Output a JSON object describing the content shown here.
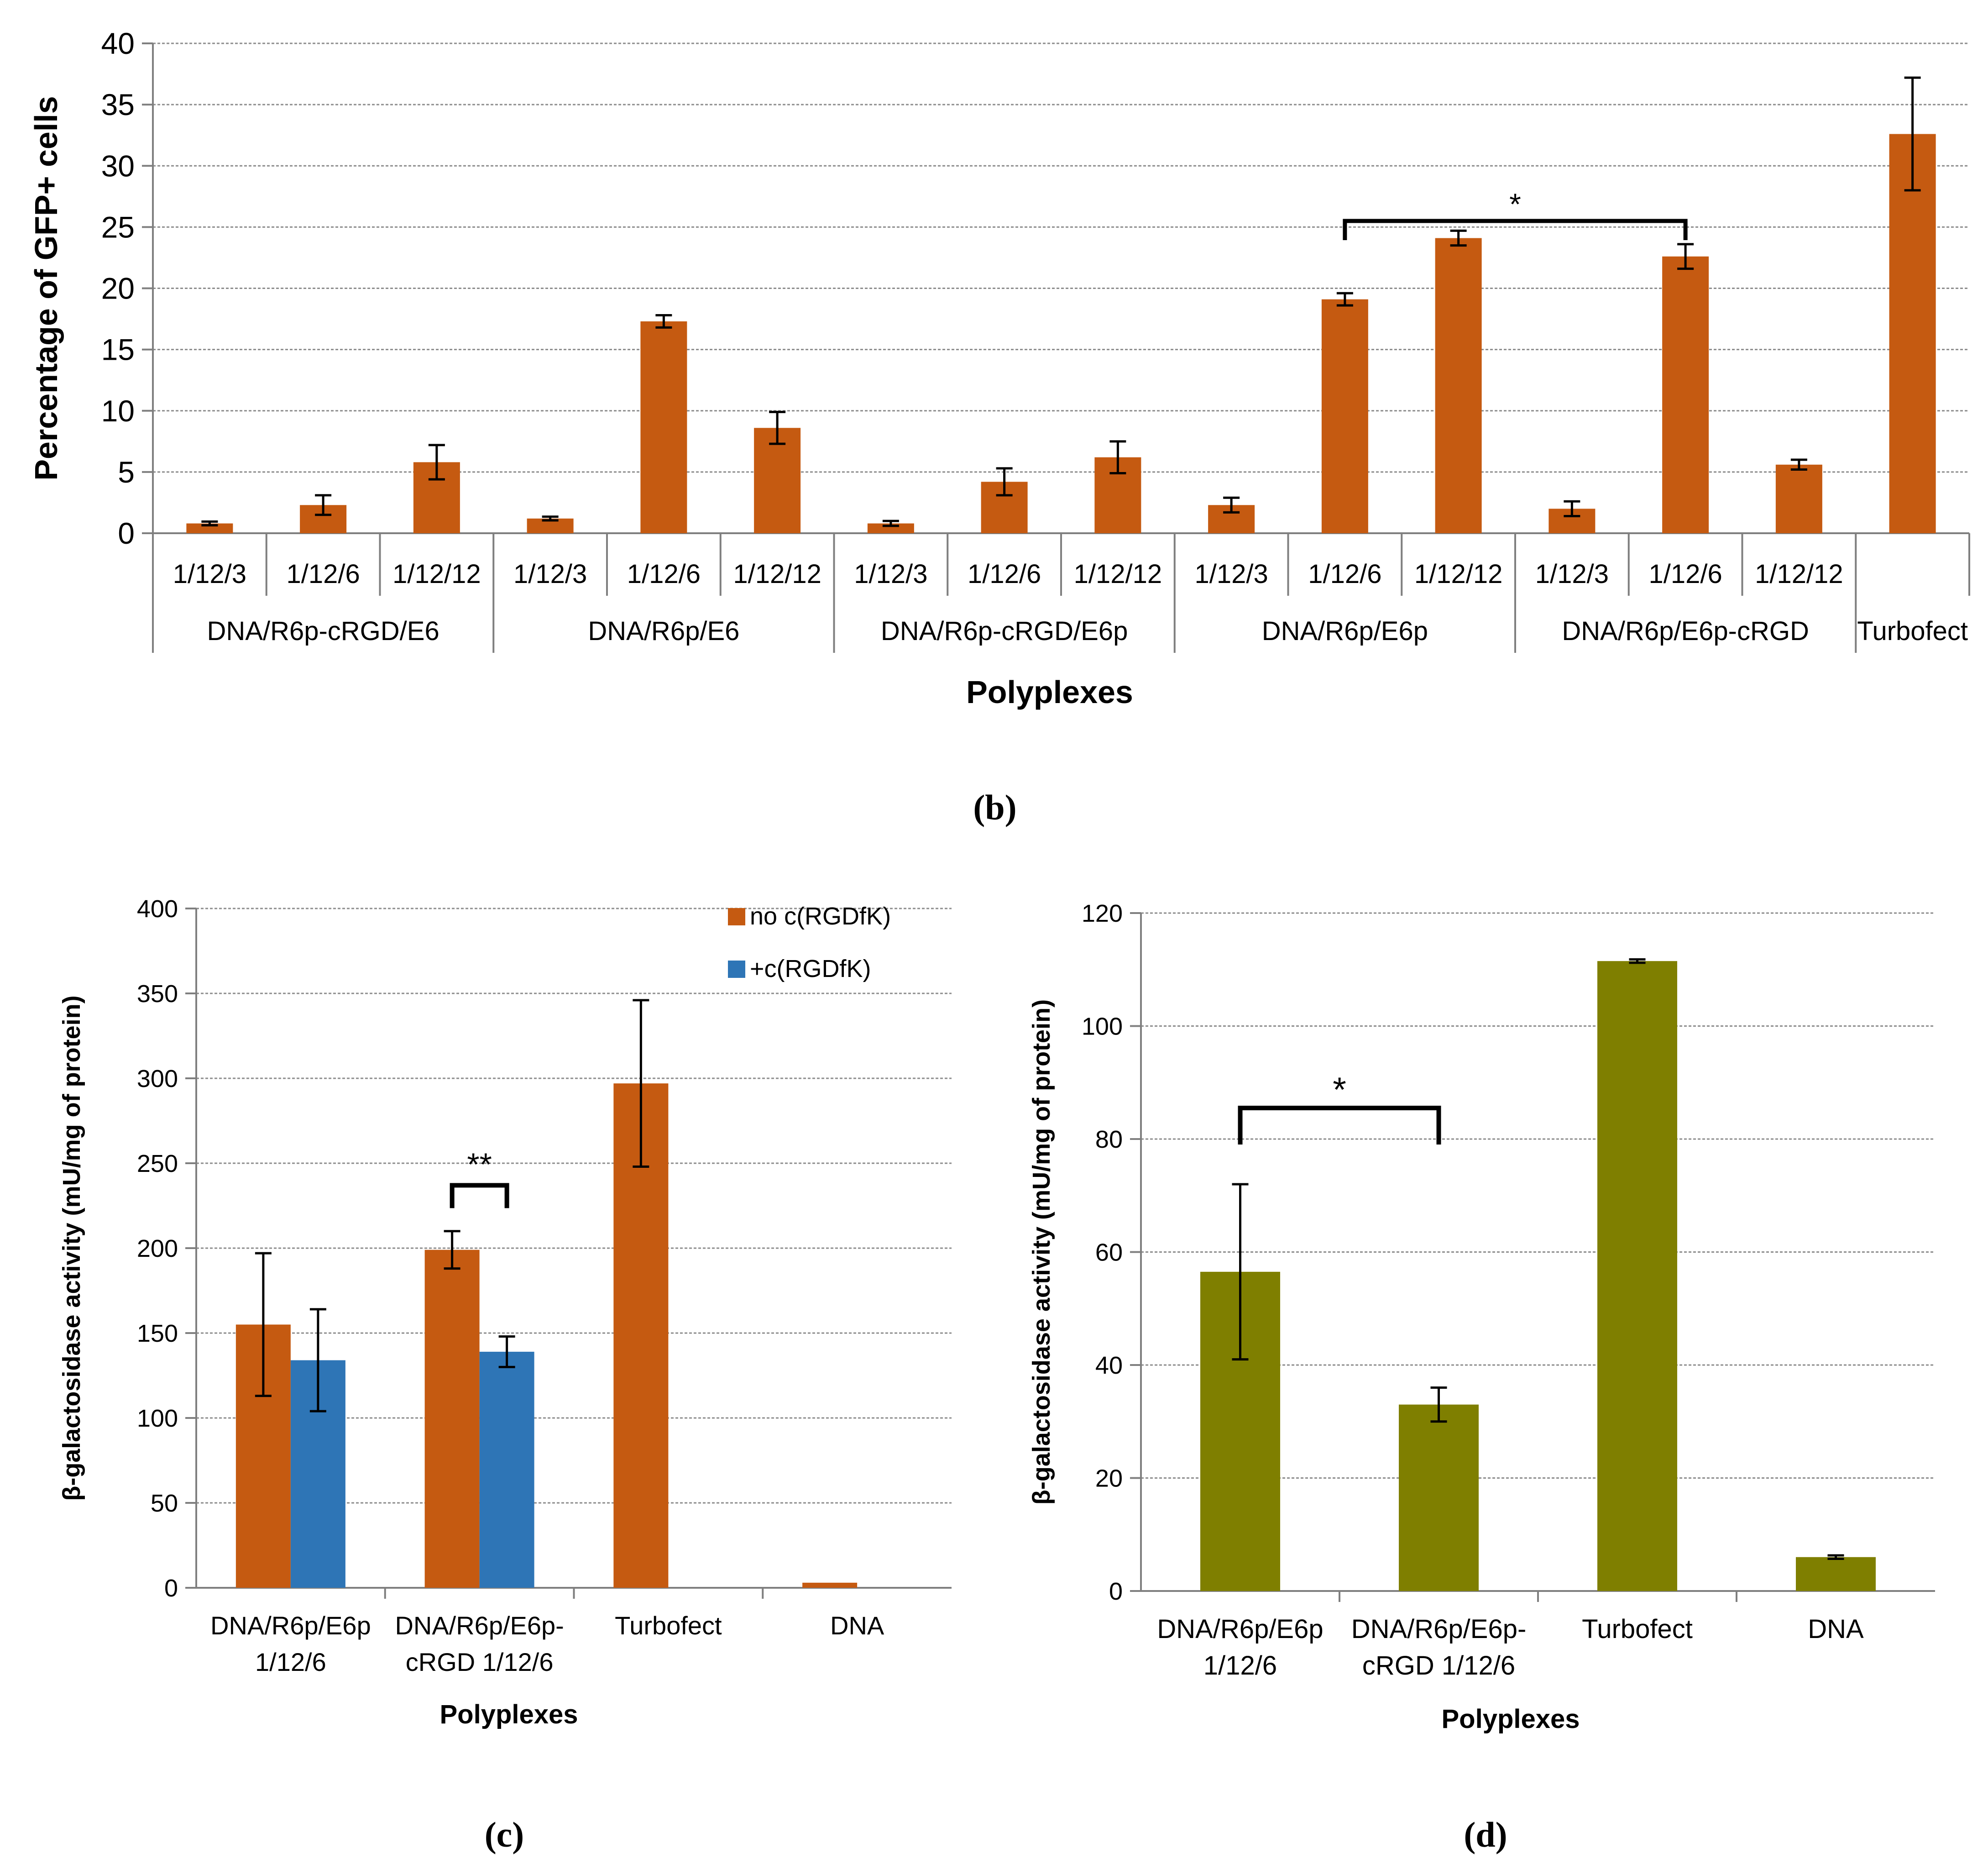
{
  "colors": {
    "orange": "#C55A11",
    "blue": "#2E75B6",
    "olive": "#7F7F00",
    "grid": "#8C8C8C",
    "axis": "#7F7F7F",
    "text": "#000000"
  },
  "chart_data": [
    {
      "panel": "b",
      "panel_label": "(b)",
      "type": "bar",
      "title": "",
      "ylabel": "Percentage of GFP+ cells",
      "xlabel": "Polyplexes",
      "ylim": [
        0,
        40
      ],
      "yticks": [
        "0",
        "5",
        "10",
        "15",
        "20",
        "25",
        "30",
        "35",
        "40"
      ],
      "grid": true,
      "bar_color": "orange",
      "groups": [
        {
          "label": "DNA/R6p-cRGD/E6",
          "categories": [
            "1/12/3",
            "1/12/6",
            "1/12/12"
          ],
          "values": [
            0.8,
            2.3,
            5.8
          ],
          "errors": [
            0.15,
            0.8,
            1.4
          ]
        },
        {
          "label": "DNA/R6p/E6",
          "categories": [
            "1/12/3",
            "1/12/6",
            "1/12/12"
          ],
          "values": [
            1.2,
            17.3,
            8.6
          ],
          "errors": [
            0.15,
            0.5,
            1.3
          ]
        },
        {
          "label": "DNA/R6p-cRGD/E6p",
          "categories": [
            "1/12/3",
            "1/12/6",
            "1/12/12"
          ],
          "values": [
            0.8,
            4.2,
            6.2
          ],
          "errors": [
            0.2,
            1.1,
            1.3
          ]
        },
        {
          "label": "DNA/R6p/E6p",
          "categories": [
            "1/12/3",
            "1/12/6",
            "1/12/12"
          ],
          "values": [
            2.3,
            19.1,
            24.1
          ],
          "errors": [
            0.6,
            0.5,
            0.6
          ]
        },
        {
          "label": "DNA/R6p/E6p-cRGD",
          "categories": [
            "1/12/3",
            "1/12/6",
            "1/12/12"
          ],
          "values": [
            2.0,
            22.6,
            5.6
          ],
          "errors": [
            0.6,
            1.0,
            0.4
          ]
        },
        {
          "label": "Turbofect",
          "categories": [
            ""
          ],
          "values": [
            32.6
          ],
          "errors": [
            4.6
          ]
        }
      ],
      "significance": [
        {
          "label": "*",
          "from": "DNA/R6p/E6p 1/12/6",
          "to": "DNA/R6p/E6p-cRGD 1/12/6",
          "level": 25.5
        }
      ]
    },
    {
      "panel": "c",
      "panel_label": "(c)",
      "type": "bar",
      "title": "",
      "ylabel": "β-galactosidase activity (mU/mg of protein)",
      "xlabel": "Polyplexes",
      "ylim": [
        0,
        400
      ],
      "yticks": [
        "0",
        "50",
        "100",
        "150",
        "200",
        "250",
        "300",
        "350",
        "400"
      ],
      "grid": true,
      "categories": [
        [
          "DNA/R6p/E6p",
          "1/12/6"
        ],
        [
          "DNA/R6p/E6p-",
          "cRGD 1/12/6"
        ],
        [
          "Turbofect"
        ],
        [
          "DNA"
        ]
      ],
      "series": [
        {
          "name": "no c(RGDfK)",
          "color": "orange",
          "values": [
            155,
            199,
            297,
            3
          ],
          "errors": [
            42,
            11,
            49,
            0
          ]
        },
        {
          "name": "+c(RGDfK)",
          "color": "blue",
          "values": [
            134,
            139,
            0,
            0
          ],
          "errors": [
            30,
            9,
            0,
            0
          ]
        }
      ],
      "legend": "top-right",
      "significance": [
        {
          "label": "**",
          "category": 1,
          "level": 237
        }
      ]
    },
    {
      "panel": "d",
      "panel_label": "(d)",
      "type": "bar",
      "title": "",
      "ylabel": "β-galactosidase activity (mU/mg of protein)",
      "xlabel": "Polyplexes",
      "ylim": [
        0,
        120
      ],
      "yticks": [
        "0",
        "20",
        "40",
        "60",
        "80",
        "100",
        "120"
      ],
      "grid": true,
      "bar_color": "olive",
      "categories": [
        [
          "DNA/R6p/E6p",
          "1/12/6"
        ],
        [
          "DNA/R6p/E6p-",
          "cRGD 1/12/6"
        ],
        [
          "Turbofect"
        ],
        [
          "DNA"
        ]
      ],
      "values": [
        56.5,
        33,
        111.5,
        6
      ],
      "errors": [
        15.5,
        3,
        0.3,
        0.3
      ],
      "significance": [
        {
          "label": "*",
          "from": 0,
          "to": 1,
          "level": 85.5
        }
      ]
    }
  ]
}
